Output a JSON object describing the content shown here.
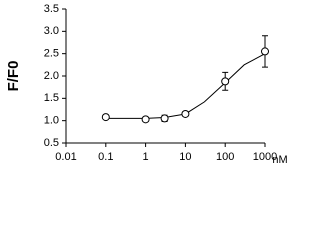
{
  "chart_data": {
    "type": "scatter",
    "y_label": "F/F0",
    "x_unit": "nM",
    "log_x": true,
    "x": [
      0.1,
      1,
      3,
      10,
      100,
      1000
    ],
    "values": [
      1.08,
      1.03,
      1.05,
      1.15,
      1.88,
      2.55
    ],
    "errors": [
      0.03,
      0.05,
      0.07,
      0.05,
      0.2,
      0.35
    ],
    "fit": {
      "x": [
        0.1,
        0.3,
        1,
        3,
        10,
        30,
        100,
        300,
        1000
      ],
      "values": [
        1.05,
        1.05,
        1.05,
        1.07,
        1.15,
        1.42,
        1.85,
        2.25,
        2.5
      ]
    },
    "color": "#000000",
    "xlim": [
      0.01,
      1000
    ],
    "xticks": [
      0.01,
      0.1,
      1,
      10,
      100,
      1000
    ],
    "ylim": [
      0.5,
      3.5
    ],
    "yticks": [
      {
        "value": 0.5,
        "label": "0.5"
      },
      {
        "value": 1,
        "label": "1.0"
      },
      {
        "value": 1.5,
        "label": "1.5"
      },
      {
        "value": 2,
        "label": "2.0"
      },
      {
        "value": 2.5,
        "label": "2.5"
      },
      {
        "value": 3,
        "label": "3.0"
      },
      {
        "value": 3.5,
        "label": "3.5"
      }
    ]
  }
}
